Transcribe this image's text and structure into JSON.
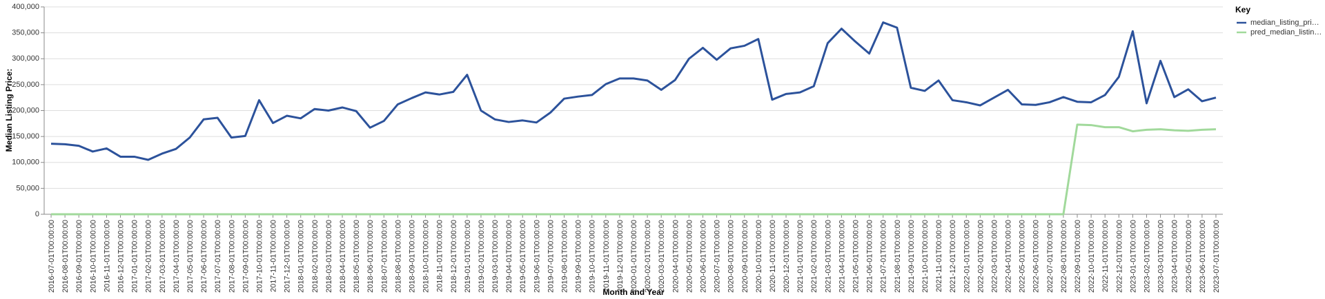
{
  "chart_data": {
    "type": "line",
    "x_label": "Month and Year",
    "y_label": "Median Listing Price:",
    "legend_title": "Key",
    "categories": [
      "2016-07-01T00:00:00",
      "2016-08-01T00:00:00",
      "2016-09-01T00:00:00",
      "2016-10-01T00:00:00",
      "2016-11-01T00:00:00",
      "2016-12-01T00:00:00",
      "2017-01-01T00:00:00",
      "2017-02-01T00:00:00",
      "2017-03-01T00:00:00",
      "2017-04-01T00:00:00",
      "2017-05-01T00:00:00",
      "2017-06-01T00:00:00",
      "2017-07-01T00:00:00",
      "2017-08-01T00:00:00",
      "2017-09-01T00:00:00",
      "2017-10-01T00:00:00",
      "2017-11-01T00:00:00",
      "2017-12-01T00:00:00",
      "2018-01-01T00:00:00",
      "2018-02-01T00:00:00",
      "2018-03-01T00:00:00",
      "2018-04-01T00:00:00",
      "2018-05-01T00:00:00",
      "2018-06-01T00:00:00",
      "2018-07-01T00:00:00",
      "2018-08-01T00:00:00",
      "2018-09-01T00:00:00",
      "2018-10-01T00:00:00",
      "2018-11-01T00:00:00",
      "2018-12-01T00:00:00",
      "2019-01-01T00:00:00",
      "2019-02-01T00:00:00",
      "2019-03-01T00:00:00",
      "2019-04-01T00:00:00",
      "2019-05-01T00:00:00",
      "2019-06-01T00:00:00",
      "2019-07-01T00:00:00",
      "2019-08-01T00:00:00",
      "2019-09-01T00:00:00",
      "2019-10-01T00:00:00",
      "2019-11-01T00:00:00",
      "2019-12-01T00:00:00",
      "2020-01-01T00:00:00",
      "2020-02-01T00:00:00",
      "2020-03-01T00:00:00",
      "2020-04-01T00:00:00",
      "2020-05-01T00:00:00",
      "2020-06-01T00:00:00",
      "2020-07-01T00:00:00",
      "2020-08-01T00:00:00",
      "2020-09-01T00:00:00",
      "2020-10-01T00:00:00",
      "2020-11-01T00:00:00",
      "2020-12-01T00:00:00",
      "2021-01-01T00:00:00",
      "2021-02-01T00:00:00",
      "2021-03-01T00:00:00",
      "2021-04-01T00:00:00",
      "2021-05-01T00:00:00",
      "2021-06-01T00:00:00",
      "2021-07-01T00:00:00",
      "2021-08-01T00:00:00",
      "2021-09-01T00:00:00",
      "2021-10-01T00:00:00",
      "2021-11-01T00:00:00",
      "2021-12-01T00:00:00",
      "2022-01-01T00:00:00",
      "2022-02-01T00:00:00",
      "2022-03-01T00:00:00",
      "2022-04-01T00:00:00",
      "2022-05-01T00:00:00",
      "2022-06-01T00:00:00",
      "2022-07-01T00:00:00",
      "2022-08-01T00:00:00",
      "2022-09-01T00:00:00",
      "2022-10-01T00:00:00",
      "2022-11-01T00:00:00",
      "2022-12-01T00:00:00",
      "2023-01-01T00:00:00",
      "2023-02-01T00:00:00",
      "2023-03-01T00:00:00",
      "2023-04-01T00:00:00",
      "2023-05-01T00:00:00",
      "2023-06-01T00:00:00",
      "2023-07-01T00:00:00"
    ],
    "series": [
      {
        "name": "median_listing_pri…",
        "color": "#2c529b",
        "values": [
          136000,
          135000,
          132000,
          121000,
          127000,
          111000,
          111000,
          105000,
          117000,
          126000,
          148000,
          183000,
          186000,
          148000,
          151000,
          220000,
          176000,
          190000,
          185000,
          203000,
          200000,
          206000,
          199000,
          167000,
          180000,
          212000,
          224000,
          235000,
          231000,
          236000,
          269000,
          200000,
          183000,
          178000,
          181000,
          177000,
          196000,
          223000,
          227000,
          230000,
          251000,
          262000,
          262000,
          258000,
          240000,
          259000,
          300000,
          321000,
          298000,
          320000,
          325000,
          338000,
          221000,
          232000,
          235000,
          247000,
          330000,
          358000,
          333000,
          310000,
          370000,
          360000,
          244000,
          238000,
          258000,
          220000,
          216000,
          210000,
          225000,
          240000,
          212000,
          211000,
          216000,
          226000,
          217000,
          216000,
          230000,
          265000,
          353000,
          214000,
          296000,
          226000,
          241000,
          218000,
          225000
        ]
      },
      {
        "name": "pred_median_listin…",
        "color": "#a1d99b",
        "values": [
          0,
          0,
          0,
          0,
          0,
          0,
          0,
          0,
          0,
          0,
          0,
          0,
          0,
          0,
          0,
          0,
          0,
          0,
          0,
          0,
          0,
          0,
          0,
          0,
          0,
          0,
          0,
          0,
          0,
          0,
          0,
          0,
          0,
          0,
          0,
          0,
          0,
          0,
          0,
          0,
          0,
          0,
          0,
          0,
          0,
          0,
          0,
          0,
          0,
          0,
          0,
          0,
          0,
          0,
          0,
          0,
          0,
          0,
          0,
          0,
          0,
          0,
          0,
          0,
          0,
          0,
          0,
          0,
          0,
          0,
          0,
          0,
          0,
          0,
          173000,
          172000,
          168000,
          168000,
          160000,
          163000,
          164000,
          162000,
          161000,
          163000,
          164000
        ]
      }
    ],
    "ylim": [
      0,
      400000
    ],
    "yticks": [
      0,
      {
        "value": 50000,
        "label": "50,000"
      },
      {
        "value": 100000,
        "label": "100,000"
      },
      {
        "value": 150000,
        "label": "150,000"
      },
      {
        "value": 200000,
        "label": "200,000"
      },
      {
        "value": 250000,
        "label": "250,000"
      },
      {
        "value": 300000,
        "label": "300,000"
      },
      {
        "value": 350000,
        "label": "350,000"
      },
      {
        "value": 400000,
        "label": "400,000"
      }
    ],
    "grid": true,
    "legend": "right"
  }
}
